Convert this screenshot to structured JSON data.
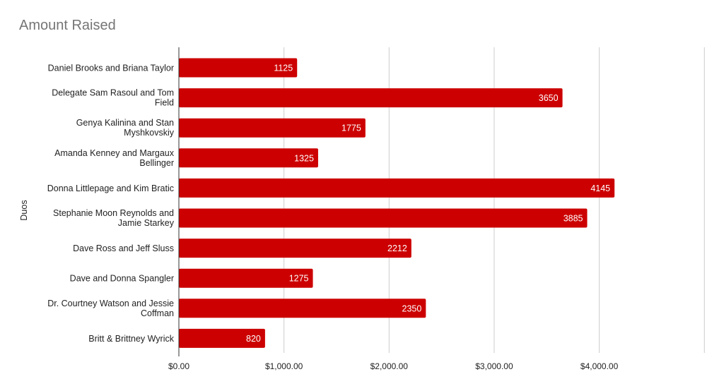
{
  "chart_data": {
    "type": "bar",
    "orientation": "horizontal",
    "title": "Amount Raised",
    "xlabel": "",
    "ylabel": "Duos",
    "xlim": [
      0,
      5000
    ],
    "x_ticks": [
      0,
      1000,
      2000,
      3000,
      4000
    ],
    "x_tick_labels": [
      "$0.00",
      "$1,000.00",
      "$2,000.00",
      "$3,000.00",
      "$4,000.00"
    ],
    "grid": true,
    "legend": "none",
    "bar_color": "#cc0000",
    "categories": [
      [
        "Daniel Brooks and Briana Taylor"
      ],
      [
        "Delegate Sam Rasoul and Tom",
        "Field"
      ],
      [
        "Genya Kalinina and Stan",
        "Myshkovskiy"
      ],
      [
        "Amanda Kenney and Margaux",
        "Bellinger"
      ],
      [
        "Donna Littlepage and Kim Bratic"
      ],
      [
        "Stephanie Moon Reynolds and",
        "Jamie Starkey"
      ],
      [
        "Dave Ross and Jeff Sluss"
      ],
      [
        "Dave and Donna Spangler"
      ],
      [
        "Dr. Courtney Watson and Jessie",
        "Coffman"
      ],
      [
        "Britt & Brittney Wyrick"
      ]
    ],
    "values": [
      1125,
      3650,
      1775,
      1325,
      4145,
      3885,
      2212,
      1275,
      2350,
      820
    ]
  }
}
